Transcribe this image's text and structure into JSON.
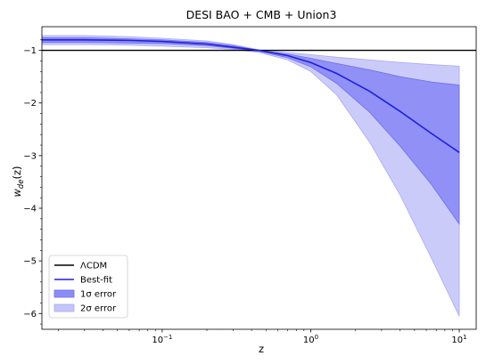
{
  "chart_data": {
    "type": "line",
    "title": "DESI BAO + CMB + Union3",
    "xlabel": "z",
    "ylabel_base": "w",
    "ylabel_sub": "de",
    "ylabel_arg": "(z)",
    "xscale": "log",
    "xlim": [
      0.0155,
      13
    ],
    "ylim": [
      -6.3,
      -0.55
    ],
    "xticks": [
      {
        "value": 0.1,
        "base": "10",
        "exp": "−1"
      },
      {
        "value": 1,
        "base": "10",
        "exp": "0"
      },
      {
        "value": 10,
        "base": "10",
        "exp": "1"
      }
    ],
    "yticks": [
      {
        "value": -1,
        "label": "−1"
      },
      {
        "value": -2,
        "label": "−2"
      },
      {
        "value": -3,
        "label": "−3"
      },
      {
        "value": -4,
        "label": "−4"
      },
      {
        "value": -5,
        "label": "−5"
      },
      {
        "value": -6,
        "label": "−6"
      }
    ],
    "lcdm": {
      "name": "ΛCDM",
      "value": -1,
      "color": "#000000"
    },
    "z": [
      0.0155,
      0.03,
      0.06,
      0.1,
      0.2,
      0.3,
      0.45,
      0.7,
      1.0,
      1.5,
      2.5,
      4.0,
      6.5,
      10.0
    ],
    "best_fit": {
      "name": "Best-fit",
      "color": "#1f1fdc",
      "values": [
        -0.8,
        -0.8,
        -0.81,
        -0.83,
        -0.88,
        -0.94,
        -1.0,
        -1.1,
        -1.23,
        -1.44,
        -1.78,
        -2.16,
        -2.58,
        -2.94
      ]
    },
    "sigma1": {
      "name": "1σ error",
      "color": "#8c8cf5",
      "upper": [
        -0.76,
        -0.76,
        -0.78,
        -0.8,
        -0.85,
        -0.91,
        -1.0,
        -1.07,
        -1.15,
        -1.25,
        -1.37,
        -1.5,
        -1.6,
        -1.66
      ],
      "lower": [
        -0.85,
        -0.85,
        -0.86,
        -0.87,
        -0.91,
        -0.96,
        -1.02,
        -1.14,
        -1.31,
        -1.63,
        -2.18,
        -2.82,
        -3.55,
        -4.3
      ]
    },
    "sigma2": {
      "name": "2σ error",
      "color": "#c5c5fa",
      "upper": [
        -0.72,
        -0.72,
        -0.74,
        -0.77,
        -0.82,
        -0.89,
        -0.99,
        -1.04,
        -1.08,
        -1.13,
        -1.18,
        -1.23,
        -1.27,
        -1.3
      ],
      "lower": [
        -0.89,
        -0.89,
        -0.9,
        -0.92,
        -0.95,
        -0.98,
        -1.04,
        -1.18,
        -1.4,
        -1.85,
        -2.75,
        -3.75,
        -4.95,
        -6.05
      ]
    },
    "legend_position": "lower-left"
  }
}
